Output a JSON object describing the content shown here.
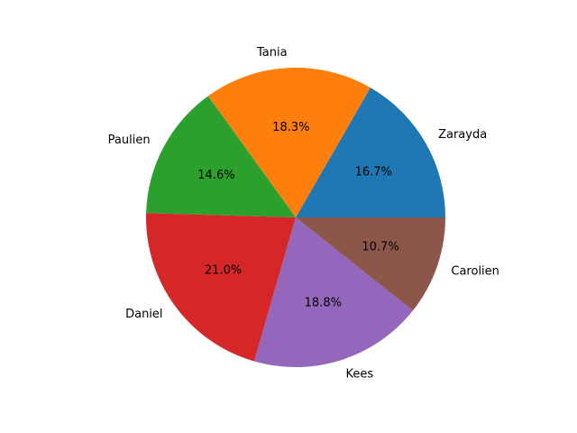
{
  "chart_data": {
    "type": "pie",
    "title": "",
    "start_angle_deg": 0,
    "direction": "counterclockwise",
    "slices": [
      {
        "label": "Zarayda",
        "value": 16.7,
        "pct_text": "16.7%",
        "color": "#1f77b4"
      },
      {
        "label": "Tania",
        "value": 18.3,
        "pct_text": "18.3%",
        "color": "#ff7f0e"
      },
      {
        "label": "Paulien",
        "value": 14.6,
        "pct_text": "14.6%",
        "color": "#2ca02c"
      },
      {
        "label": "Daniel",
        "value": 21.0,
        "pct_text": "21.0%",
        "color": "#d62728"
      },
      {
        "label": "Kees",
        "value": 18.8,
        "pct_text": "18.8%",
        "color": "#9467bd"
      },
      {
        "label": "Carolien",
        "value": 10.7,
        "pct_text": "10.7%",
        "color": "#8c564b"
      }
    ]
  }
}
